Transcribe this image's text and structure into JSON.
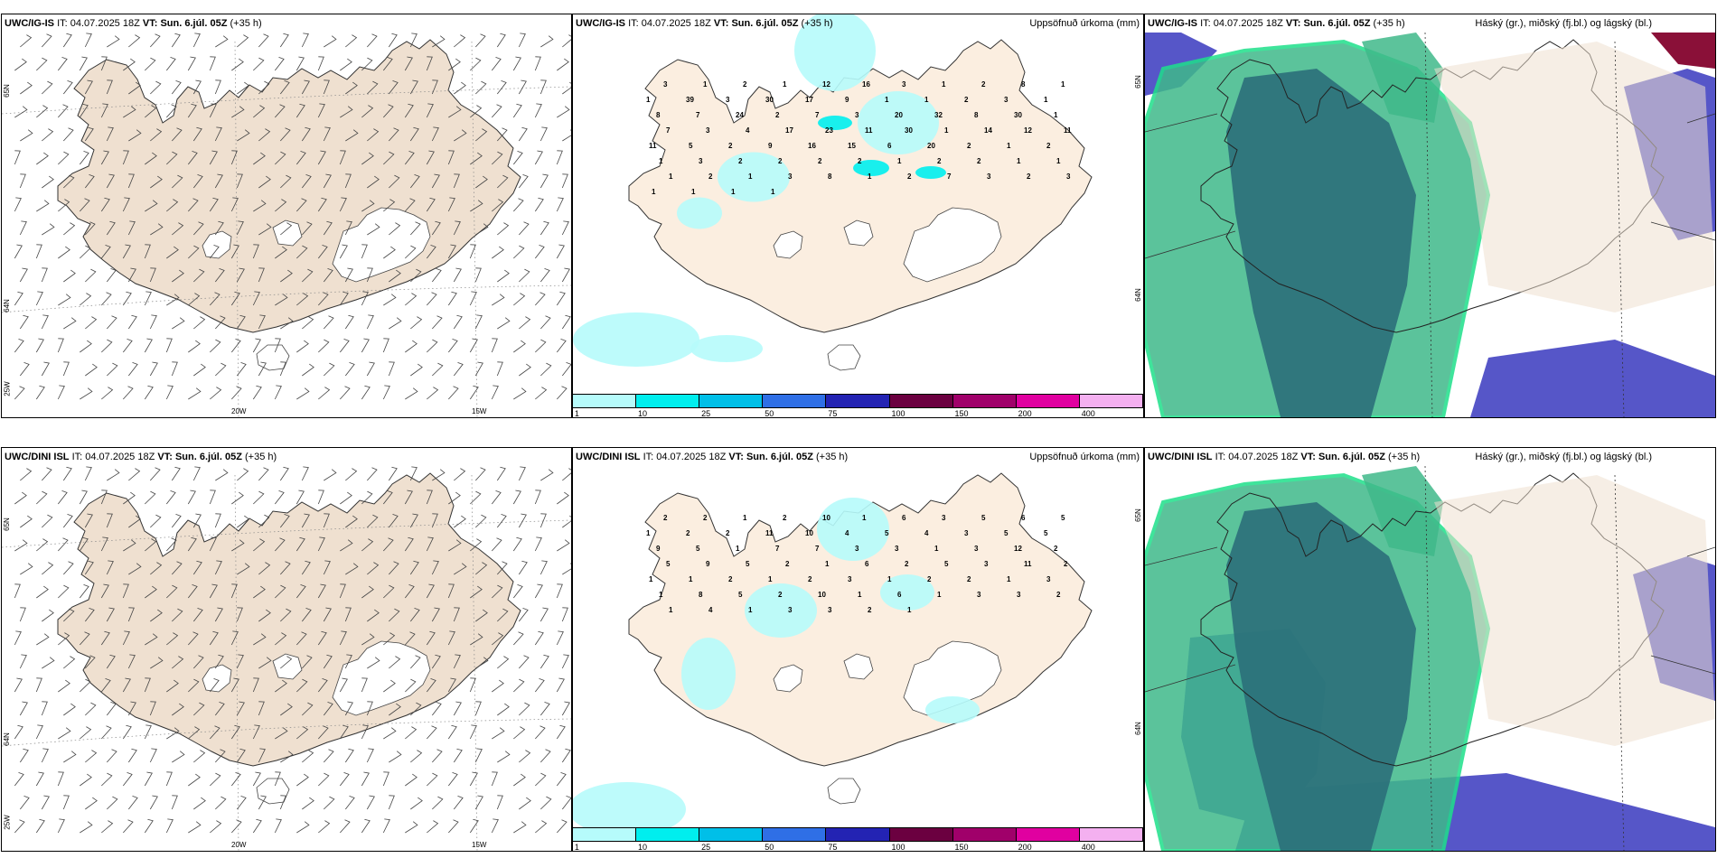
{
  "rows": [
    {
      "wind": {
        "model": "UWC/IG-IS",
        "it_label": "IT:",
        "it_value": "04.07.2025 18Z",
        "vt_label": "VT:",
        "vt_value": "Sun. 6.júl. 05Z",
        "lead": "(+35 h)",
        "lon_labels": [
          "20W",
          "15W"
        ],
        "lat_labels": [
          "65N",
          "64N",
          "25W"
        ]
      },
      "precip": {
        "model": "UWC/IG-IS",
        "it_label": "IT:",
        "it_value": "04.07.2025 18Z",
        "vt_label": "VT:",
        "vt_value": "Sun. 6.júl. 05Z",
        "lead": "(+35 h)",
        "title": "Uppsöfnuð úrkoma (mm)",
        "lat_labels": [
          "65N",
          "64N"
        ],
        "values": [
          "3",
          "1",
          "2",
          "1",
          "12",
          "16",
          "3",
          "1",
          "2",
          "8",
          "1",
          "1",
          "39",
          "3",
          "30",
          "17",
          "9",
          "1",
          "1",
          "2",
          "3",
          "1",
          "8",
          "7",
          "24",
          "2",
          "7",
          "3",
          "20",
          "32",
          "8",
          "30",
          "1",
          "7",
          "3",
          "4",
          "17",
          "23",
          "11",
          "30",
          "1",
          "14",
          "12",
          "11",
          "11",
          "5",
          "2",
          "9",
          "16",
          "15",
          "6",
          "20",
          "2",
          "1",
          "2",
          "1",
          "3",
          "2",
          "2",
          "2",
          "2",
          "1",
          "2",
          "2",
          "1",
          "1",
          "1",
          "2",
          "1",
          "3",
          "8",
          "1",
          "2",
          "7",
          "3",
          "2",
          "3",
          "1",
          "1",
          "1",
          "1"
        ]
      },
      "cloud": {
        "model": "UWC/IG-IS",
        "it_label": "IT:",
        "it_value": "04.07.2025 18Z",
        "vt_label": "VT:",
        "vt_value": "Sun. 6.júl. 05Z",
        "lead": "(+35 h)",
        "title": "Háský (gr.), miðský (fj.bl.) og lágský (bl.)"
      }
    },
    {
      "wind": {
        "model": "UWC/DINI ISL",
        "it_label": "IT:",
        "it_value": "04.07.2025 18Z",
        "vt_label": "VT:",
        "vt_value": "Sun. 6.júl. 05Z",
        "lead": "(+35 h)",
        "lon_labels": [
          "20W",
          "15W"
        ],
        "lat_labels": [
          "65N",
          "64N",
          "25W"
        ]
      },
      "precip": {
        "model": "UWC/DINI ISL",
        "it_label": "IT:",
        "it_value": "04.07.2025 18Z",
        "vt_label": "VT:",
        "vt_value": "Sun. 6.júl. 05Z",
        "lead": "(+35 h)",
        "title": "Uppsöfnuð úrkoma (mm)",
        "lat_labels": [
          "65N",
          "64N"
        ],
        "values": [
          "2",
          "2",
          "1",
          "2",
          "10",
          "1",
          "6",
          "3",
          "5",
          "6",
          "5",
          "1",
          "2",
          "2",
          "11",
          "10",
          "4",
          "5",
          "4",
          "3",
          "5",
          "5",
          "9",
          "5",
          "1",
          "7",
          "7",
          "3",
          "3",
          "1",
          "3",
          "12",
          "2",
          "5",
          "9",
          "5",
          "2",
          "1",
          "6",
          "2",
          "5",
          "3",
          "11",
          "2",
          "1",
          "1",
          "2",
          "1",
          "2",
          "3",
          "1",
          "2",
          "2",
          "1",
          "3",
          "1",
          "8",
          "5",
          "2",
          "10",
          "1",
          "6",
          "1",
          "3",
          "3",
          "2",
          "1",
          "4",
          "1",
          "3",
          "3",
          "2",
          "1"
        ]
      },
      "cloud": {
        "model": "UWC/DINI ISL",
        "it_label": "IT:",
        "it_value": "04.07.2025 18Z",
        "vt_label": "VT:",
        "vt_value": "Sun. 6.júl. 05Z",
        "lead": "(+35 h)",
        "title": "Háský (gr.), miðský (fj.bl.) og lágský (bl.)"
      }
    }
  ],
  "legend": {
    "ticks": [
      "1",
      "10",
      "25",
      "50",
      "75",
      "100",
      "150",
      "200",
      "400"
    ],
    "colors": [
      "#b6fbfb",
      "#00eeee",
      "#00bfe8",
      "#2f6fe6",
      "#2323b3",
      "#6b0040",
      "#a0006a",
      "#e000a0",
      "#f4b0f0"
    ]
  },
  "colors": {
    "land": "#efe0d0",
    "precip_land": "#fbeee0",
    "glacier": "#ffffff",
    "precip_light": "#b6fbfb",
    "precip_mid": "#00eeee",
    "cloud_high": "#3fb98a",
    "cloud_mid": "#2b6f7a",
    "cloud_low": "#5656c8",
    "cloud_high_edge": "#1ee08a"
  }
}
